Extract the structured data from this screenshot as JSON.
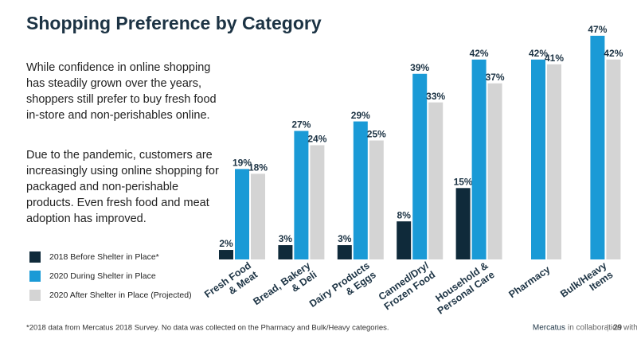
{
  "chart_data": {
    "type": "bar",
    "title": "Shopping Preference by Category",
    "paragraphs": [
      [
        "While confidence in online shopping",
        "has steadily grown over the years,",
        "shoppers still prefer to buy fresh food",
        "in-store and non-perishables online."
      ],
      [
        "Due to the pandemic, customers are",
        "increasingly using online shopping for",
        "packaged and non-perishable",
        "products. Even fresh food and meat",
        "adoption has improved."
      ]
    ],
    "categories": [
      [
        "Fresh Food",
        "& Meat"
      ],
      [
        "Bread, Bakery",
        "& Deli"
      ],
      [
        "Dairy Products",
        "& Eggs"
      ],
      [
        "Canned/Dry/",
        "Frozen Food"
      ],
      [
        "Household &",
        "Personal Care"
      ],
      [
        "Pharmacy"
      ],
      [
        "Bulk/Heavy",
        "Items"
      ]
    ],
    "series": [
      {
        "name": "2018 Before Shelter in Place*",
        "color": "#0f2a3a",
        "values": [
          2,
          3,
          3,
          8,
          15,
          null,
          null
        ],
        "value_labels": [
          "2%",
          "3%",
          "3%",
          "8%",
          "15%",
          null,
          null
        ]
      },
      {
        "name": "2020 During Shelter in Place",
        "color": "#1a9ad6",
        "values": [
          19,
          27,
          29,
          39,
          42,
          42,
          47
        ],
        "value_labels": [
          "19%",
          "27%",
          "29%",
          "39%",
          "42%",
          "42%",
          "47%"
        ]
      },
      {
        "name": "2020 After Shelter in Place (Projected)",
        "color": "#d4d4d4",
        "values": [
          18,
          24,
          25,
          33,
          37,
          41,
          42
        ],
        "value_labels": [
          "18%",
          "24%",
          "25%",
          "33%",
          "37%",
          "41%",
          "42%"
        ]
      }
    ],
    "footnote": "*2018 data from Mercatus 2018 Survey. No data was collected on the Pharmacy and Bulk/Heavy categories.",
    "footer": {
      "brand": "Mercatus",
      "text": "in collaboration with Incisiv",
      "page": "29"
    }
  }
}
